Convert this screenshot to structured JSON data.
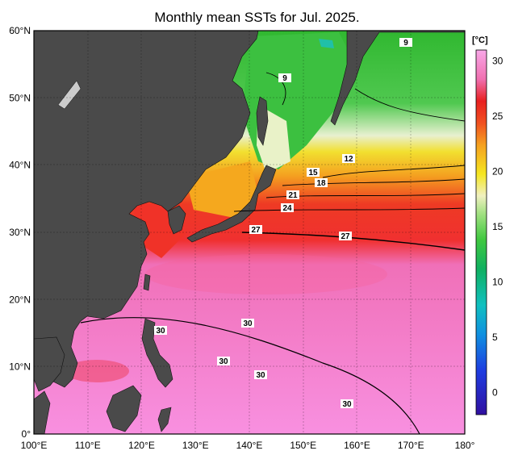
{
  "title": "Monthly mean SSTs for Jul. 2025.",
  "colorbar": {
    "unit": "[°C]",
    "ticks": [
      "30",
      "25",
      "20",
      "15",
      "10",
      "5",
      "0"
    ]
  },
  "axes": {
    "lon_labels": [
      "100°E",
      "110°E",
      "120°E",
      "130°E",
      "140°E",
      "150°E",
      "160°E",
      "170°E",
      "180°"
    ],
    "lat_labels": [
      "60°N",
      "50°N",
      "40°N",
      "30°N",
      "20°N",
      "10°N",
      "0°"
    ]
  },
  "contour_labels": [
    "9",
    "9",
    "12",
    "15",
    "18",
    "21",
    "24",
    "27",
    "27",
    "30",
    "30",
    "30",
    "30",
    "30"
  ],
  "colors": {
    "land": "#4a4a4a",
    "warm_pink": "#f78ad8",
    "red": "#f22c2c",
    "orange": "#f7a020",
    "yellow": "#f6e620",
    "green": "#3cc43c",
    "cyan": "#20c8b0"
  }
}
